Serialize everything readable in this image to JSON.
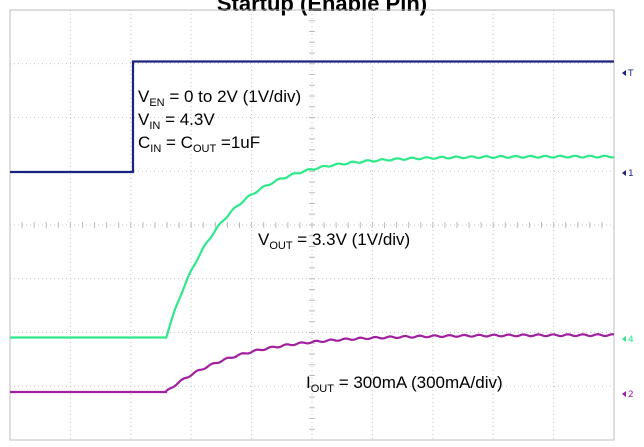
{
  "title": "Startup (Enable Pin)",
  "chart_data": {
    "type": "line",
    "grid": true,
    "divisions": {
      "x": 10,
      "y": 8
    },
    "series": [
      {
        "key": "ven",
        "color": "#1a237e",
        "values": [
          0,
          0,
          2,
          2
        ]
      },
      {
        "key": "vout",
        "color": "#2ee88a",
        "values": [
          0,
          3.3
        ]
      },
      {
        "key": "iout",
        "color": "#a020a0",
        "values": [
          0,
          300
        ]
      }
    ],
    "annotations": [
      {
        "id": "ven",
        "parts": [
          [
            "V",
            ""
          ],
          [
            "EN",
            "sub"
          ],
          [
            " = 0 to 2V (1V/div)",
            ""
          ]
        ]
      },
      {
        "id": "vin",
        "parts": [
          [
            "V",
            ""
          ],
          [
            "IN",
            "sub"
          ],
          [
            " = 4.3V",
            ""
          ]
        ]
      },
      {
        "id": "cap",
        "parts": [
          [
            "C",
            ""
          ],
          [
            "IN",
            "sub"
          ],
          [
            " = C",
            ""
          ],
          [
            "OUT",
            "sub"
          ],
          [
            " =1uF",
            ""
          ]
        ]
      },
      {
        "id": "vout",
        "parts": [
          [
            "V",
            ""
          ],
          [
            "OUT",
            "sub"
          ],
          [
            " = 3.3V (1V/div)",
            ""
          ]
        ]
      },
      {
        "id": "iout",
        "parts": [
          [
            "I",
            ""
          ],
          [
            "OUT",
            "sub"
          ],
          [
            " = 300mA (300mA/div)",
            ""
          ]
        ]
      }
    ],
    "channel_markers": [
      {
        "label": "T",
        "color": "#1a237e"
      },
      {
        "label": "1",
        "color": "#1a237e"
      },
      {
        "label": "4",
        "color": "#2ee88a"
      },
      {
        "label": "2",
        "color": "#a020a0"
      }
    ]
  }
}
